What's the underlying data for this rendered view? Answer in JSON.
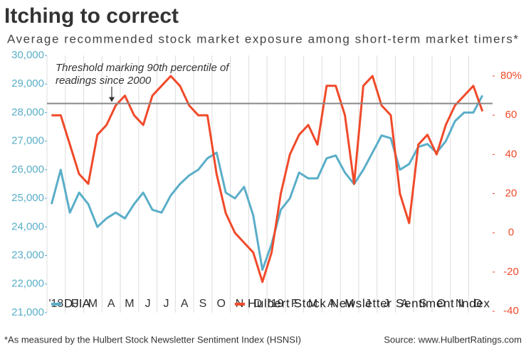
{
  "chart_data": {
    "type": "line",
    "title": "Itching to correct",
    "subtitle": "Average recommended stock market exposure among short-term market timers*",
    "annotation": "Threshold marking 90th percentile of readings since 2000",
    "threshold": 66,
    "footnote": "*As measured by the Hulbert Stock Newsletter Sentiment Index (HSNSI)",
    "source": "Source: www.HulbertRatings.com",
    "xlim": [
      0,
      24.3
    ],
    "xticks": [
      {
        "value": 0,
        "label": "'18"
      },
      {
        "value": 1,
        "label": "F"
      },
      {
        "value": 2,
        "label": "M"
      },
      {
        "value": 3,
        "label": "A"
      },
      {
        "value": 4,
        "label": "M"
      },
      {
        "value": 5,
        "label": "J"
      },
      {
        "value": 6,
        "label": "J"
      },
      {
        "value": 7,
        "label": "A"
      },
      {
        "value": 8,
        "label": "S"
      },
      {
        "value": 9,
        "label": "O"
      },
      {
        "value": 10,
        "label": "N"
      },
      {
        "value": 11,
        "label": "D"
      },
      {
        "value": 12,
        "label": "'19"
      },
      {
        "value": 13,
        "label": "F"
      },
      {
        "value": 14,
        "label": "M"
      },
      {
        "value": 15,
        "label": "A"
      },
      {
        "value": 16,
        "label": "M"
      },
      {
        "value": 17,
        "label": "J"
      },
      {
        "value": 18,
        "label": "J"
      },
      {
        "value": 19,
        "label": "A"
      },
      {
        "value": 20,
        "label": "S"
      },
      {
        "value": 21,
        "label": "O"
      },
      {
        "value": 22,
        "label": "N"
      },
      {
        "value": 23,
        "label": "D"
      }
    ],
    "ylim": [
      21000,
      30000
    ],
    "yticks": [
      {
        "value": 21000,
        "label": "21,000"
      },
      {
        "value": 22000,
        "label": "22,000"
      },
      {
        "value": 23000,
        "label": "23,000"
      },
      {
        "value": 24000,
        "label": "24,000"
      },
      {
        "value": 25000,
        "label": "25,000"
      },
      {
        "value": 26000,
        "label": "26,000"
      },
      {
        "value": 27000,
        "label": "27,000"
      },
      {
        "value": 28000,
        "label": "28,000"
      },
      {
        "value": 29000,
        "label": "29,000"
      },
      {
        "value": 30000,
        "label": "30,000"
      }
    ],
    "y2lim": [
      -40.7,
      90.5
    ],
    "y2ticks": [
      -40,
      -20,
      0,
      20,
      40,
      60,
      {
        "value": 80,
        "label": "80%"
      }
    ],
    "x": [
      0.25,
      0.75,
      1.25,
      1.75,
      2.25,
      2.75,
      3.25,
      3.75,
      4.25,
      4.75,
      5.25,
      5.75,
      6.25,
      6.75,
      7.25,
      7.75,
      8.25,
      8.75,
      9.25,
      9.75,
      10.25,
      10.75,
      11.25,
      11.75,
      12.25,
      12.75,
      13.25,
      13.75,
      14.25,
      14.75,
      15.25,
      15.75,
      16.25,
      16.75,
      17.25,
      17.75,
      18.25,
      18.75,
      19.25,
      19.75,
      20.25,
      20.75,
      21.25,
      21.75,
      22.25,
      22.75,
      23.25,
      23.75
    ],
    "series": [
      {
        "name": "DJIA",
        "color": "#5aaec8",
        "values": [
          24800,
          26000,
          24500,
          25200,
          24800,
          24000,
          24300,
          24500,
          24300,
          24800,
          25200,
          24600,
          24500,
          25100,
          25500,
          25800,
          26000,
          26400,
          26600,
          25200,
          25000,
          25400,
          24400,
          22500,
          23400,
          24600,
          25000,
          25900,
          25700,
          25700,
          26400,
          26500,
          25900,
          25500,
          26000,
          26600,
          27200,
          27100,
          26000,
          26200,
          26800,
          26900,
          26600,
          27000,
          27700,
          28000,
          28000,
          28600
        ]
      },
      {
        "name": "Hulbert Stock Newsletter Sentiment Index",
        "color": "#f04a2a",
        "axis": "y2",
        "values": [
          60,
          60,
          45,
          30,
          25,
          50,
          55,
          65,
          70,
          60,
          55,
          70,
          75,
          80,
          75,
          65,
          60,
          60,
          30,
          10,
          0,
          -5,
          -10,
          -25,
          -10,
          20,
          40,
          50,
          55,
          45,
          75,
          75,
          60,
          25,
          75,
          80,
          65,
          60,
          20,
          5,
          45,
          50,
          40,
          55,
          65,
          70,
          75,
          62
        ]
      }
    ]
  }
}
